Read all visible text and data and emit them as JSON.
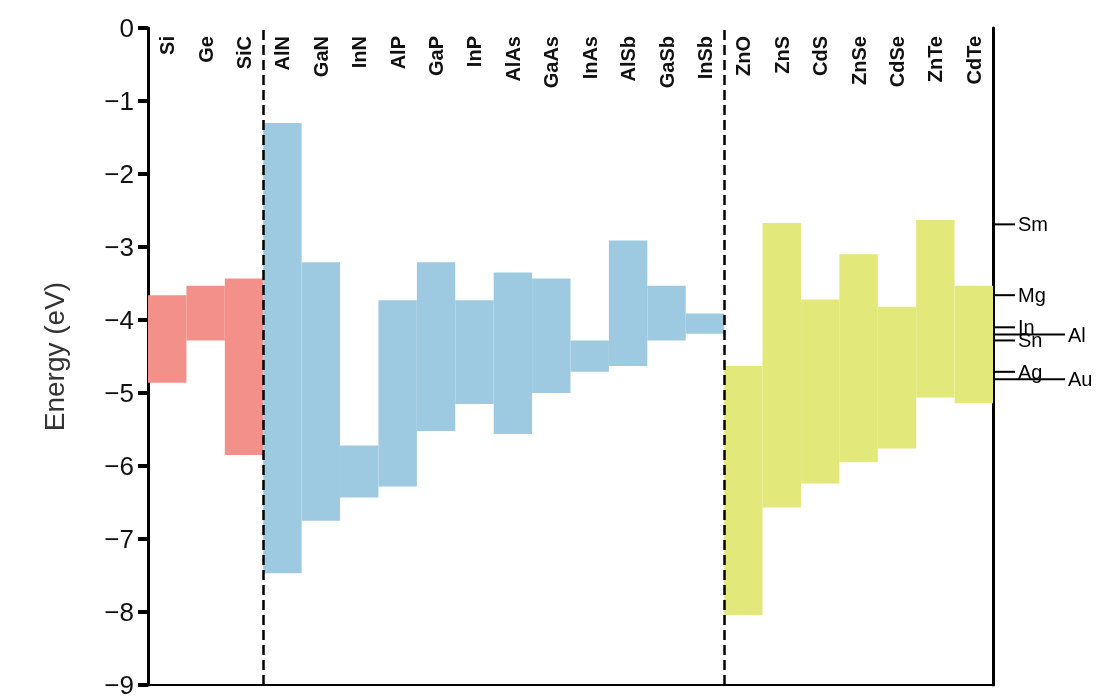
{
  "chart_data": {
    "type": "bar",
    "ylabel": "Energy (eV)",
    "categories": [
      "Si",
      "Ge",
      "SiC",
      "AlN",
      "GaN",
      "InN",
      "AlP",
      "GaP",
      "InP",
      "AlAs",
      "GaAs",
      "InAs",
      "AlSb",
      "GaSb",
      "InSb",
      "ZnO",
      "ZnS",
      "CdS",
      "ZnSe",
      "CdSe",
      "ZnTe",
      "CdTe"
    ],
    "base": [
      -4.86,
      -4.28,
      -5.85,
      -7.47,
      -6.75,
      -6.43,
      -6.28,
      -5.52,
      -5.15,
      -5.56,
      -5.0,
      -4.71,
      -4.63,
      -4.28,
      -4.19,
      -8.04,
      -6.57,
      -6.24,
      -5.95,
      -5.76,
      -5.06,
      -5.14
    ],
    "values": [
      1.2,
      0.75,
      2.42,
      6.17,
      3.54,
      0.71,
      2.55,
      2.31,
      1.42,
      2.21,
      1.57,
      0.43,
      1.72,
      0.75,
      0.28,
      3.41,
      3.9,
      2.52,
      2.85,
      1.94,
      2.43,
      1.61
    ],
    "colors": [
      "#f4908a",
      "#f4908a",
      "#f4908a",
      "#9ecae1",
      "#9ecae1",
      "#9ecae1",
      "#9ecae1",
      "#9ecae1",
      "#9ecae1",
      "#9ecae1",
      "#9ecae1",
      "#9ecae1",
      "#9ecae1",
      "#9ecae1",
      "#9ecae1",
      "#e2e87a",
      "#e2e87a",
      "#e2e87a",
      "#e2e87a",
      "#e2e87a",
      "#e2e87a",
      "#e2e87a"
    ],
    "ylim": [
      -9,
      0
    ],
    "yticks": [
      -9,
      -8,
      -7,
      -6,
      -5,
      -4,
      -3,
      -2,
      -1,
      0
    ],
    "ref_lines": [
      {
        "axis": "y",
        "value": -2.69,
        "label": "Sm"
      },
      {
        "axis": "y",
        "value": -3.66,
        "label": "Mg"
      },
      {
        "axis": "y",
        "value": -4.1,
        "label": "In"
      },
      {
        "axis": "y",
        "value": -4.2,
        "label": "Al"
      },
      {
        "axis": "y",
        "value": -4.28,
        "label": "Sn"
      },
      {
        "axis": "y",
        "value": -4.71,
        "label": "Ag"
      },
      {
        "axis": "y",
        "value": -4.81,
        "label": "Au"
      }
    ],
    "grid": false
  }
}
